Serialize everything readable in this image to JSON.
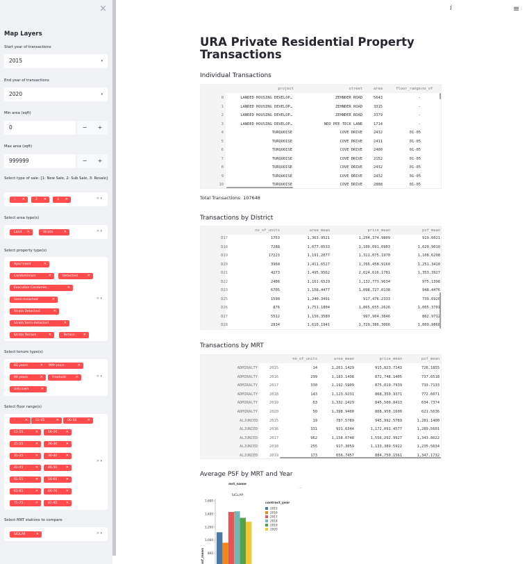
{
  "sidebar": {
    "close_icon": "close-icon",
    "title": "Map Layers",
    "start_year_label": "Start year of transactions",
    "start_year_value": "2015",
    "end_year_label": "End year of transactions",
    "end_year_value": "2020",
    "min_area_label": "Min area (sqft)",
    "min_area_value": "0",
    "max_area_label": "Max area (sqft)",
    "max_area_value": "999999",
    "minus": "−",
    "plus": "+",
    "sale_type_label": "Select type of sale: [1: New Sale, 2: Sub Sale, 3: Resale]",
    "sale_types": [
      "1",
      "2",
      "3"
    ],
    "area_type_label": "Select area type(s)",
    "area_types": [
      "Land",
      "Strata"
    ],
    "property_type_label": "Select property type(s)",
    "property_types": [
      "Apartment",
      "Condominium",
      "Detached",
      "Executive Condomin...",
      "Semi-detached",
      "Strata Detached",
      "Strata Semi-detached",
      "Strata Terrace",
      "Terrace"
    ],
    "tenure_label": "Select tenure type(s)",
    "tenures": [
      "60 years",
      "999 years",
      "99 years",
      "Freehold",
      "Unknown"
    ],
    "floor_label": "Select floor range(s)",
    "floors": [
      "-",
      "01-05",
      "06-10",
      "11-15",
      "16-20",
      "21-25",
      "26-30",
      "31-35",
      "36-40",
      "41-45",
      "46-50",
      "51-55",
      "56-60",
      "61-65",
      "66-70",
      "71-75",
      "81-85"
    ],
    "mrt_label": "Select MRT stations to compare",
    "mrts": [
      "SIGLAP"
    ],
    "tag_close": "✕",
    "multi_clear": "✕",
    "multi_chev": "▾",
    "select_chev": "▾"
  },
  "topbar": {
    "info_icon": "i",
    "menu_icon": "≡"
  },
  "main": {
    "title": "URA Private Residential Property Transactions",
    "individual_header": "Individual Transactions",
    "total_transactions": "Total Transactions: 107648",
    "district_header": "Transactions by District",
    "mrt_header": "Transactions by MRT",
    "chart_header": "Average PSF by MRT and Year"
  },
  "table_individual": {
    "columns": [
      "project",
      "street",
      "area",
      "floor_range",
      "no_of"
    ],
    "rows": [
      [
        "0",
        "LANDED HOUSING DEVELOP…",
        "ZEHNDER ROAD",
        "5643",
        "-"
      ],
      [
        "1",
        "LANDED HOUSING DEVELOP…",
        "ZEHNDER ROAD",
        "3315",
        "-"
      ],
      [
        "2",
        "LANDED HOUSING DEVELOP…",
        "ZEHNDER ROAD",
        "3379",
        "-"
      ],
      [
        "3",
        "LANDED HOUSING DEVELOP…",
        "NEO PEE TECK LANE",
        "1714",
        "-"
      ],
      [
        "4",
        "TURQUOISE",
        "COVE DRIVE",
        "2432",
        "01-05"
      ],
      [
        "5",
        "TURQUOISE",
        "COVE DRIVE",
        "2411",
        "01-05"
      ],
      [
        "6",
        "TURQUOISE",
        "COVE DRIVE",
        "2400",
        "01-05"
      ],
      [
        "7",
        "TURQUOISE",
        "COVE DRIVE",
        "2152",
        "01-05"
      ],
      [
        "8",
        "TURQUOISE",
        "COVE DRIVE",
        "2432",
        "01-05"
      ],
      [
        "9",
        "TURQUOISE",
        "COVE DRIVE",
        "2432",
        "01-05"
      ],
      [
        "10",
        "TURQUOISE",
        "COVE DRIVE",
        "2888",
        "01-05"
      ]
    ]
  },
  "table_district": {
    "columns": [
      "no_of_units",
      "area_mean",
      "price_mean",
      "psf_mean"
    ],
    "rows": [
      [
        "D17",
        "1753",
        "1,363.9521",
        "1,254,374.9809",
        "919.6021"
      ],
      [
        "D18",
        "7288",
        "1,077.0533",
        "1,100,091.0903",
        "1,020.9010"
      ],
      [
        "D19",
        "17223",
        "1,191.2077",
        "1,311,075.1970",
        "1,108.6208"
      ],
      [
        "D20",
        "3968",
        "1,411.6527",
        "1,766,458.9160",
        "1,251.3410"
      ],
      [
        "D21",
        "4273",
        "1,495.9562",
        "2,024,616.1781",
        "1,353.3927"
      ],
      [
        "D22",
        "2486",
        "1,161.6529",
        "1,132,773.9634",
        "975.1398"
      ],
      [
        "D23",
        "6705",
        "1,158.4477",
        "1,098,727.0138",
        "948.4476"
      ],
      [
        "D25",
        "1590",
        "1,240.3491",
        "917,476.2333",
        "739.6920"
      ],
      [
        "D26",
        "876",
        "1,751.1804",
        "1,865,655.2626",
        "1,065.3701"
      ],
      [
        "D27",
        "5512",
        "1,156.3589",
        "997,904.3846",
        "862.9712"
      ],
      [
        "D28",
        "2834",
        "1,610.1941",
        "1,729,386.3066",
        "1,009.9868"
      ]
    ]
  },
  "table_mrt": {
    "columns": [
      "no_of_units",
      "area_mean",
      "price_mean",
      "psf_mean"
    ],
    "rows": [
      [
        "ADMIRALTY",
        "2015",
        "14",
        "1,261.1429",
        "915,823.7143",
        "726.1855"
      ],
      [
        "ADMIRALTY",
        "2016",
        "299",
        "1,183.1438",
        "872,748.1405",
        "737.6518"
      ],
      [
        "ADMIRALTY",
        "2017",
        "330",
        "1,192.5909",
        "875,019.7939",
        "733.7133"
      ],
      [
        "ADMIRALTY",
        "2018",
        "143",
        "1,123.9231",
        "868,350.9371",
        "772.6071"
      ],
      [
        "ADMIRALTY",
        "2019",
        "63",
        "1,332.1429",
        "845,500.8413",
        "634.7374"
      ],
      [
        "ADMIRALTY",
        "2020",
        "50",
        "1,398.9400",
        "868,950.1600",
        "621.5636"
      ],
      [
        "ALJUNIED",
        "2015",
        "19",
        "787.5789",
        "945,992.5789",
        "1,281.1400"
      ],
      [
        "ALJUNIED",
        "2016",
        "331",
        "921.6344",
        "1,172,091.4577",
        "1,289.5601"
      ],
      [
        "ALJUNIED",
        "2017",
        "962",
        "1,158.0748",
        "1,556,292.9927",
        "1,343.8622"
      ],
      [
        "ALJUNIED",
        "2018",
        "255",
        "917.3059",
        "1,133,389.5922",
        "1,235.5634"
      ],
      [
        "ALJUNIED",
        "2019",
        "173",
        "656.7457",
        "884,750.1561",
        "1,347.1732"
      ]
    ]
  },
  "chart_data": {
    "type": "bar",
    "title": "mrt_name",
    "facet": "SIGLAP",
    "xlabel": "",
    "ylabel": "psf_mean",
    "ylim": [
      800,
      1600
    ],
    "yticks": [
      "1,600",
      "1,400",
      "1,200",
      "1,000",
      "800"
    ],
    "legend_title": "contract_year",
    "legend_placement": "right",
    "categories": [
      "2015",
      "2016",
      "2017",
      "2018",
      "2019",
      "2020"
    ],
    "colors": [
      "#4c78a8",
      "#f58518",
      "#e45756",
      "#72b7b2",
      "#54a24b",
      "#eeca3b"
    ],
    "values": [
      1120,
      960,
      1430,
      1440,
      1340,
      1280
    ],
    "more_icon": "···"
  }
}
